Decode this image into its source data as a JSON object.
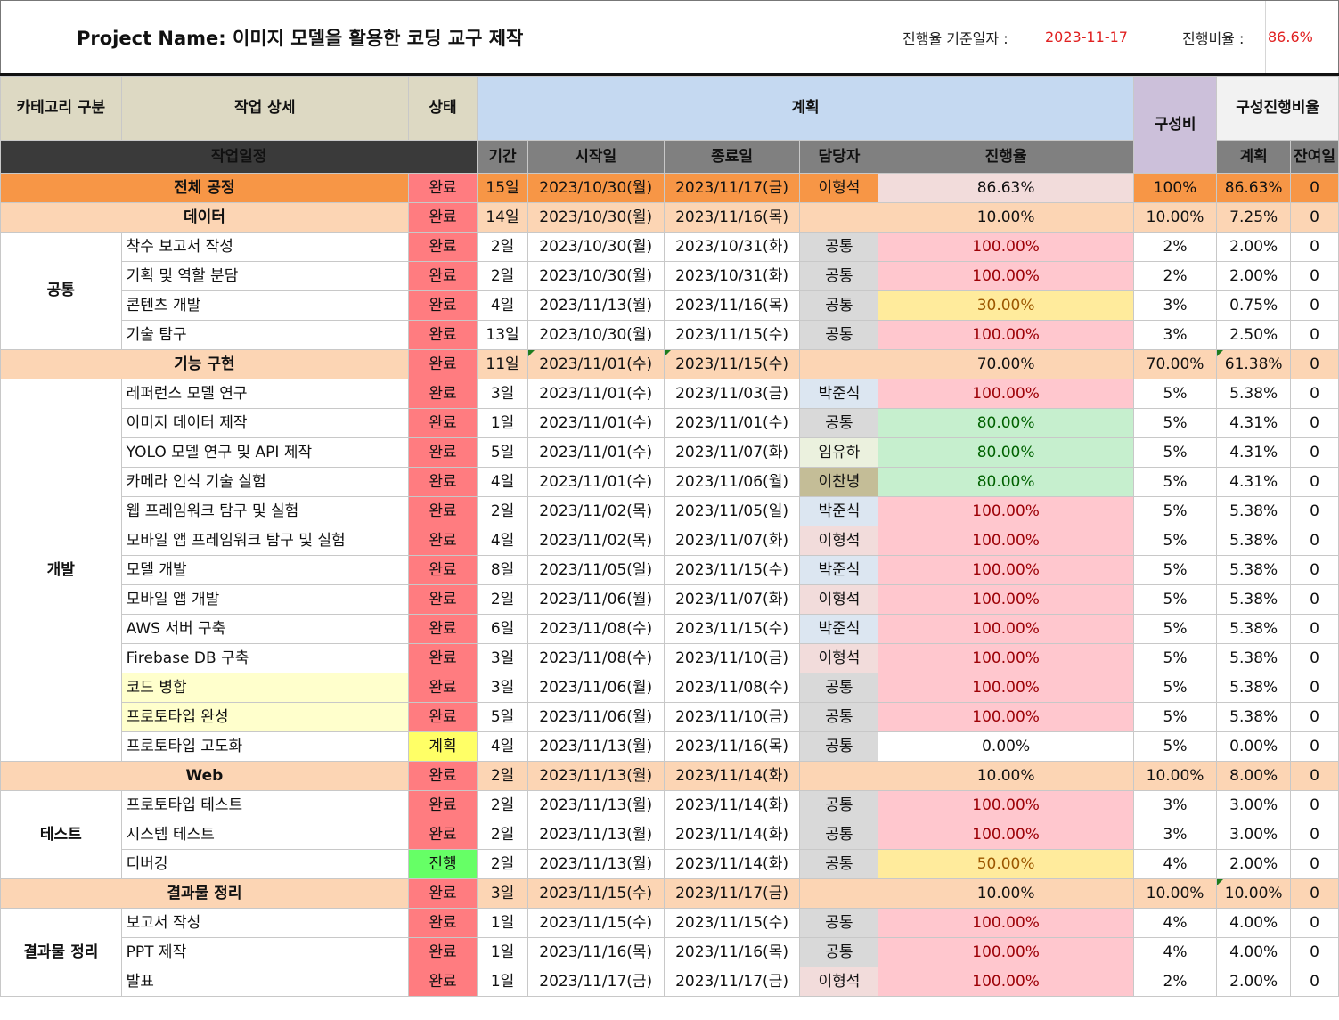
{
  "header": {
    "project_title": "Project Name: 이미지 모델을 활용한 코딩 교구 제작",
    "base_date_label": "진행율 기준일자 :",
    "base_date": "2023-11-17",
    "rate_label": "진행비율 :",
    "rate_value": "86.6%"
  },
  "columns": {
    "category": "카테고리 구분",
    "detail": "작업 상세",
    "status": "상태",
    "plan": "계획",
    "composition": "구성비",
    "comp_progress": "구성진행비율",
    "schedule": "작업일정",
    "duration": "기간",
    "start": "시작일",
    "end": "종료일",
    "owner": "담당자",
    "progress": "진행율",
    "plan_sub": "계획",
    "remain": "잔여일"
  },
  "total": {
    "name": "전체 공정",
    "status": "완료",
    "duration": "15일",
    "start": "2023/10/30(월)",
    "end": "2023/11/17(금)",
    "owner": "이형석",
    "progress": "86.63%",
    "comp": "100%",
    "plan": "86.63%",
    "remain": "0"
  },
  "sections": [
    {
      "summary": {
        "name": "데이터",
        "status": "완료",
        "duration": "14일",
        "start": "2023/10/30(월)",
        "end": "2023/11/16(목)",
        "owner": "",
        "progress": "10.00%",
        "comp": "10.00%",
        "plan": "7.25%",
        "remain": "0"
      },
      "category": "공통",
      "rows": [
        {
          "task": "착수 보고서 작성",
          "status": "완료",
          "duration": "2일",
          "start": "2023/10/30(월)",
          "end": "2023/10/31(화)",
          "owner": "공통",
          "progress": "100.00%",
          "comp": "2%",
          "plan": "2.00%",
          "remain": "0"
        },
        {
          "task": "기획 및 역할 분담",
          "status": "완료",
          "duration": "2일",
          "start": "2023/10/30(월)",
          "end": "2023/10/31(화)",
          "owner": "공통",
          "progress": "100.00%",
          "comp": "2%",
          "plan": "2.00%",
          "remain": "0"
        },
        {
          "task": "콘텐츠 개발",
          "status": "완료",
          "duration": "4일",
          "start": "2023/11/13(월)",
          "end": "2023/11/16(목)",
          "owner": "공통",
          "progress": "30.00%",
          "comp": "3%",
          "plan": "0.75%",
          "remain": "0"
        },
        {
          "task": "기술 탐구",
          "status": "완료",
          "duration": "13일",
          "start": "2023/10/30(월)",
          "end": "2023/11/15(수)",
          "owner": "공통",
          "progress": "100.00%",
          "comp": "3%",
          "plan": "2.50%",
          "remain": "0"
        }
      ]
    },
    {
      "summary": {
        "name": "기능 구현",
        "status": "완료",
        "duration": "11일",
        "start": "2023/11/01(수)",
        "end": "2023/11/15(수)",
        "owner": "",
        "progress": "70.00%",
        "comp": "70.00%",
        "plan": "61.38%",
        "remain": "0"
      },
      "category": "개발",
      "rows": [
        {
          "task": "레퍼런스 모델 연구",
          "status": "완료",
          "duration": "3일",
          "start": "2023/11/01(수)",
          "end": "2023/11/03(금)",
          "owner": "박준식",
          "progress": "100.00%",
          "comp": "5%",
          "plan": "5.38%",
          "remain": "0"
        },
        {
          "task": "이미지 데이터 제작",
          "status": "완료",
          "duration": "1일",
          "start": "2023/11/01(수)",
          "end": "2023/11/01(수)",
          "owner": "공통",
          "progress": "80.00%",
          "comp": "5%",
          "plan": "4.31%",
          "remain": "0"
        },
        {
          "task": "YOLO 모델 연구 및 API 제작",
          "status": "완료",
          "duration": "5일",
          "start": "2023/11/01(수)",
          "end": "2023/11/07(화)",
          "owner": "임유하",
          "progress": "80.00%",
          "comp": "5%",
          "plan": "4.31%",
          "remain": "0"
        },
        {
          "task": "카메라 인식 기술 실험",
          "status": "완료",
          "duration": "4일",
          "start": "2023/11/01(수)",
          "end": "2023/11/06(월)",
          "owner": "이찬녕",
          "progress": "80.00%",
          "comp": "5%",
          "plan": "4.31%",
          "remain": "0"
        },
        {
          "task": "웹 프레임워크 탐구 및 실험",
          "status": "완료",
          "duration": "2일",
          "start": "2023/11/02(목)",
          "end": "2023/11/05(일)",
          "owner": "박준식",
          "progress": "100.00%",
          "comp": "5%",
          "plan": "5.38%",
          "remain": "0"
        },
        {
          "task": "모바일 앱 프레임워크 탐구 및 실험",
          "status": "완료",
          "duration": "4일",
          "start": "2023/11/02(목)",
          "end": "2023/11/07(화)",
          "owner": "이형석",
          "progress": "100.00%",
          "comp": "5%",
          "plan": "5.38%",
          "remain": "0"
        },
        {
          "task": "모델 개발",
          "status": "완료",
          "duration": "8일",
          "start": "2023/11/05(일)",
          "end": "2023/11/15(수)",
          "owner": "박준식",
          "progress": "100.00%",
          "comp": "5%",
          "plan": "5.38%",
          "remain": "0"
        },
        {
          "task": "모바일 앱 개발",
          "status": "완료",
          "duration": "2일",
          "start": "2023/11/06(월)",
          "end": "2023/11/07(화)",
          "owner": "이형석",
          "progress": "100.00%",
          "comp": "5%",
          "plan": "5.38%",
          "remain": "0"
        },
        {
          "task": "AWS 서버 구축",
          "status": "완료",
          "duration": "6일",
          "start": "2023/11/08(수)",
          "end": "2023/11/15(수)",
          "owner": "박준식",
          "progress": "100.00%",
          "comp": "5%",
          "plan": "5.38%",
          "remain": "0"
        },
        {
          "task": "Firebase DB 구축",
          "status": "완료",
          "duration": "3일",
          "start": "2023/11/08(수)",
          "end": "2023/11/10(금)",
          "owner": "이형석",
          "progress": "100.00%",
          "comp": "5%",
          "plan": "5.38%",
          "remain": "0"
        },
        {
          "task": "코드 병합",
          "status": "완료",
          "duration": "3일",
          "start": "2023/11/06(월)",
          "end": "2023/11/08(수)",
          "owner": "공통",
          "progress": "100.00%",
          "comp": "5%",
          "plan": "5.38%",
          "remain": "0"
        },
        {
          "task": "프로토타입 완성",
          "status": "완료",
          "duration": "5일",
          "start": "2023/11/06(월)",
          "end": "2023/11/10(금)",
          "owner": "공통",
          "progress": "100.00%",
          "comp": "5%",
          "plan": "5.38%",
          "remain": "0"
        },
        {
          "task": "프로토타입 고도화",
          "status": "계획",
          "duration": "4일",
          "start": "2023/11/13(월)",
          "end": "2023/11/16(목)",
          "owner": "공통",
          "progress": "0.00%",
          "comp": "5%",
          "plan": "0.00%",
          "remain": "0"
        }
      ]
    },
    {
      "summary": {
        "name": "Web",
        "status": "완료",
        "duration": "2일",
        "start": "2023/11/13(월)",
        "end": "2023/11/14(화)",
        "owner": "",
        "progress": "10.00%",
        "comp": "10.00%",
        "plan": "8.00%",
        "remain": "0"
      },
      "category": "테스트",
      "rows": [
        {
          "task": "프로토타입 테스트",
          "status": "완료",
          "duration": "2일",
          "start": "2023/11/13(월)",
          "end": "2023/11/14(화)",
          "owner": "공통",
          "progress": "100.00%",
          "comp": "3%",
          "plan": "3.00%",
          "remain": "0"
        },
        {
          "task": "시스템 테스트",
          "status": "완료",
          "duration": "2일",
          "start": "2023/11/13(월)",
          "end": "2023/11/14(화)",
          "owner": "공통",
          "progress": "100.00%",
          "comp": "3%",
          "plan": "3.00%",
          "remain": "0"
        },
        {
          "task": "디버깅",
          "status": "진행",
          "duration": "2일",
          "start": "2023/11/13(월)",
          "end": "2023/11/14(화)",
          "owner": "공통",
          "progress": "50.00%",
          "comp": "4%",
          "plan": "2.00%",
          "remain": "0"
        }
      ]
    },
    {
      "summary": {
        "name": "결과물 정리",
        "status": "완료",
        "duration": "3일",
        "start": "2023/11/15(수)",
        "end": "2023/11/17(금)",
        "owner": "",
        "progress": "10.00%",
        "comp": "10.00%",
        "plan": "10.00%",
        "remain": "0"
      },
      "category": "결과물 정리",
      "rows": [
        {
          "task": "보고서 작성",
          "status": "완료",
          "duration": "1일",
          "start": "2023/11/15(수)",
          "end": "2023/11/15(수)",
          "owner": "공통",
          "progress": "100.00%",
          "comp": "4%",
          "plan": "4.00%",
          "remain": "0"
        },
        {
          "task": "PPT 제작",
          "status": "완료",
          "duration": "1일",
          "start": "2023/11/16(목)",
          "end": "2023/11/16(목)",
          "owner": "공통",
          "progress": "100.00%",
          "comp": "4%",
          "plan": "4.00%",
          "remain": "0"
        },
        {
          "task": "발표",
          "status": "완료",
          "duration": "1일",
          "start": "2023/11/17(금)",
          "end": "2023/11/17(금)",
          "owner": "이형석",
          "progress": "100.00%",
          "comp": "2%",
          "plan": "2.00%",
          "remain": "0"
        }
      ]
    }
  ]
}
